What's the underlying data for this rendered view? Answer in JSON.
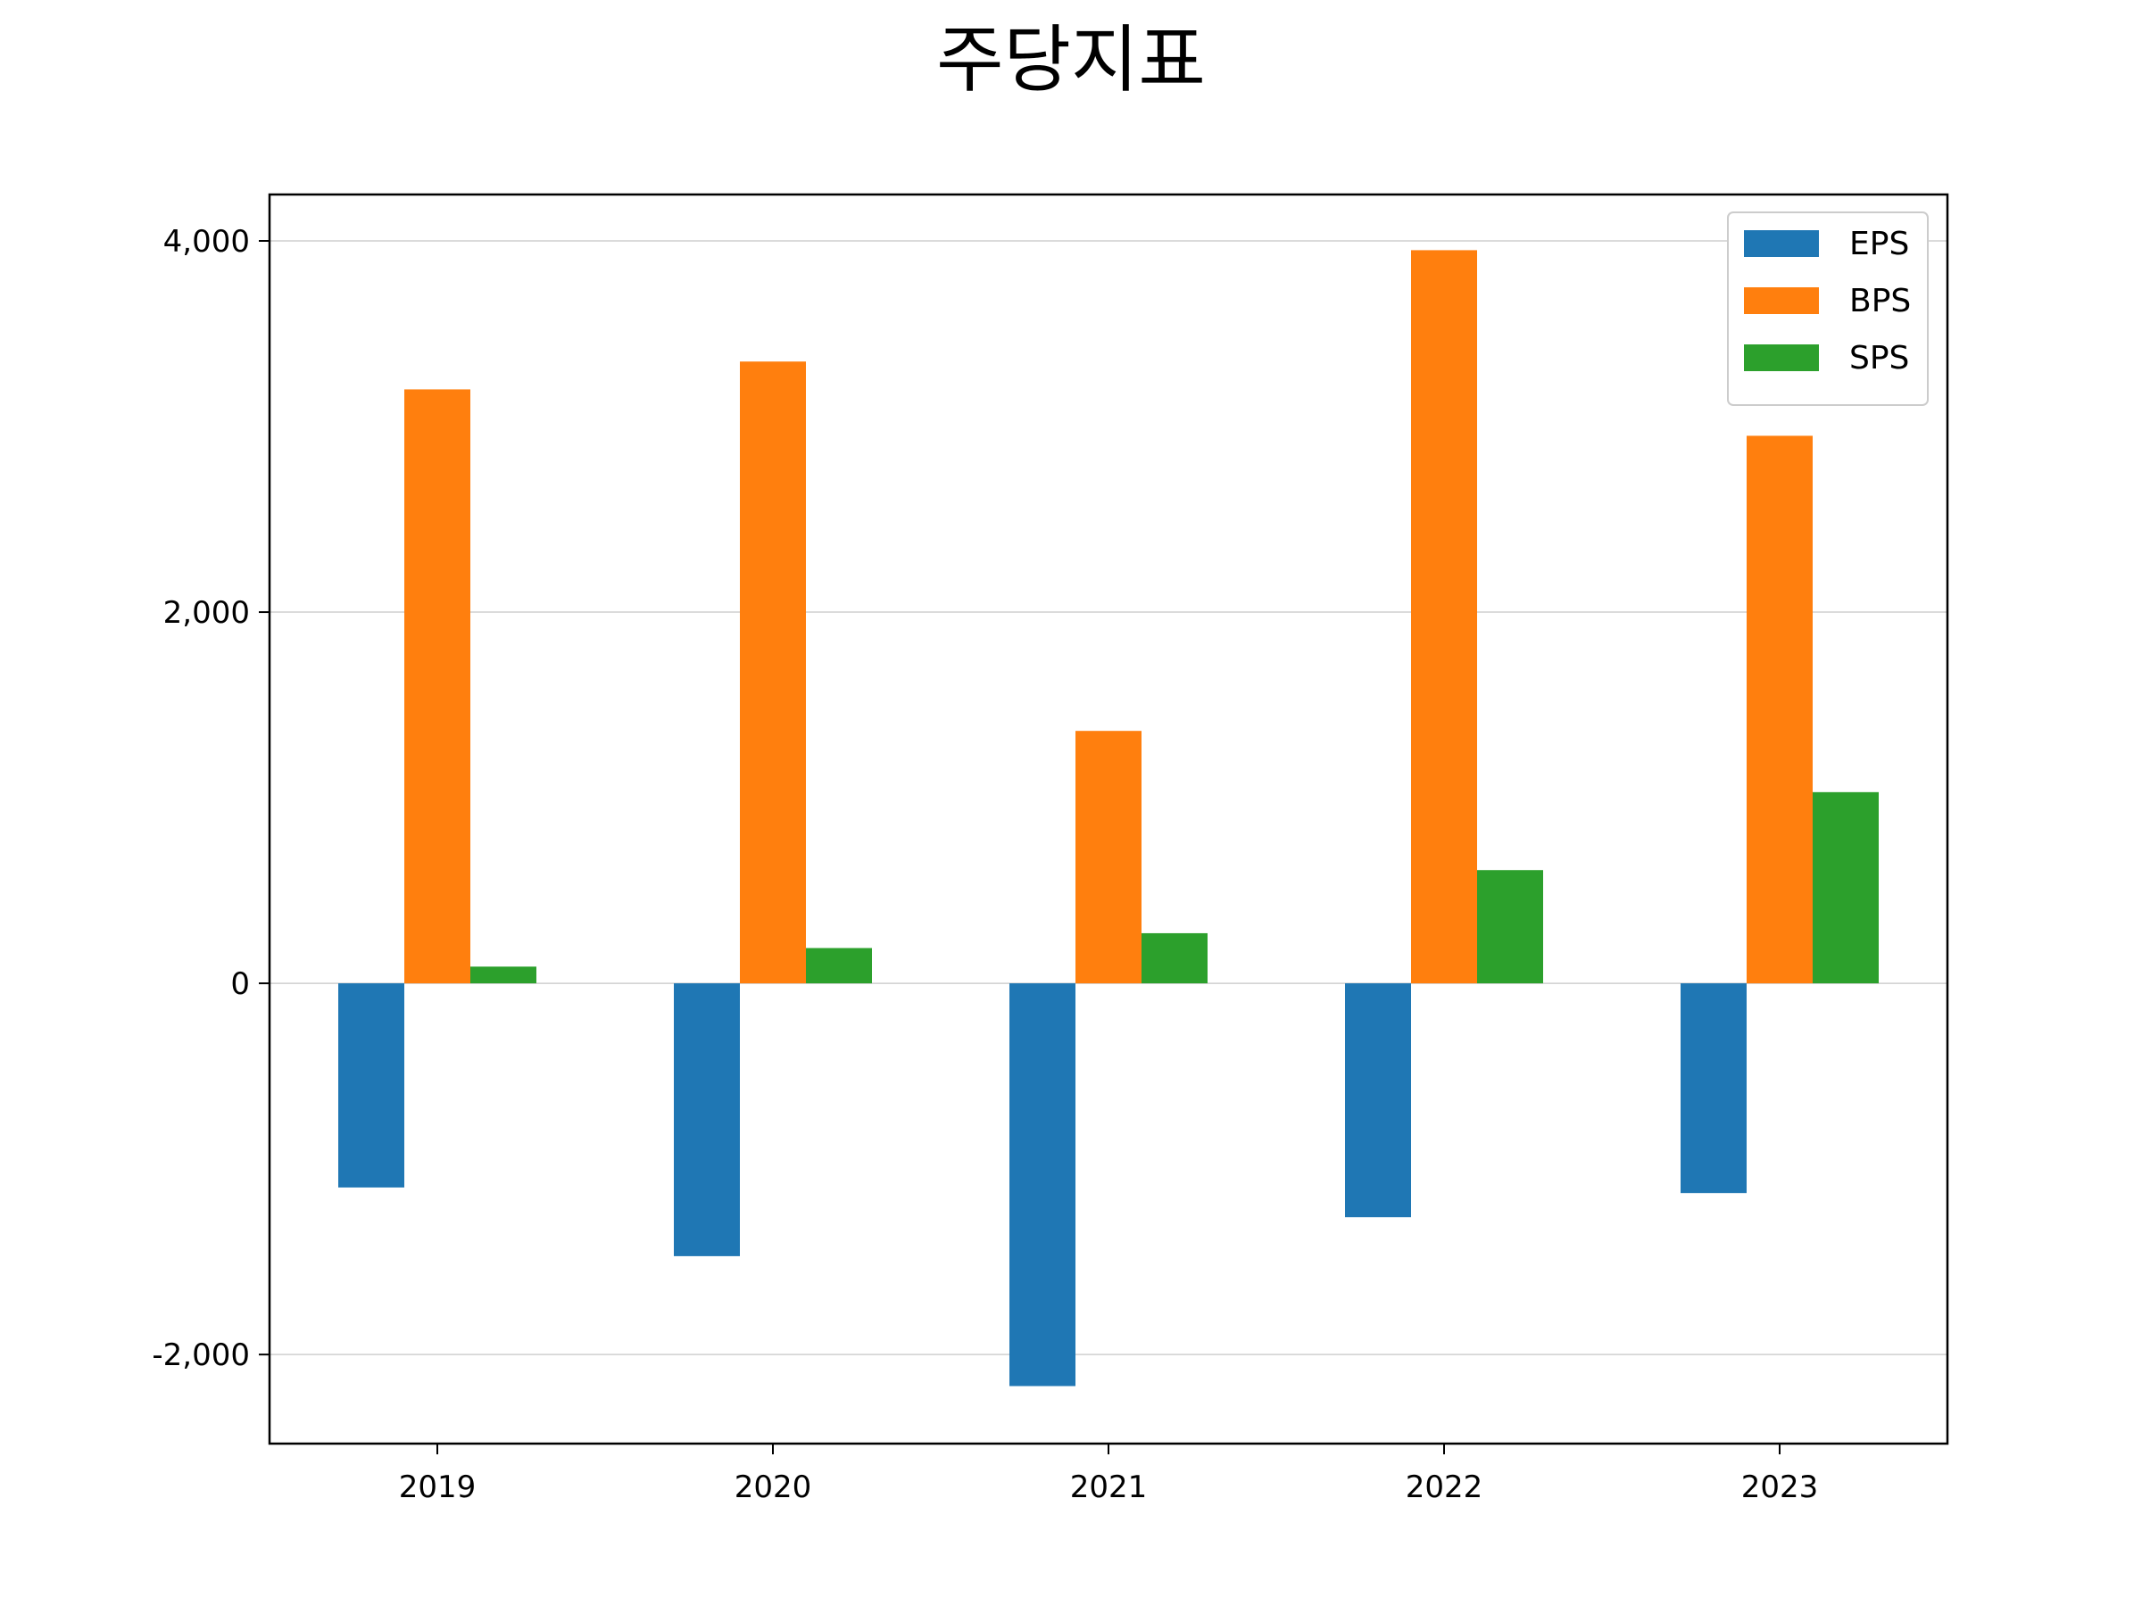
{
  "chart_data": {
    "type": "bar",
    "title": "주당지표",
    "categories": [
      "2019",
      "2020",
      "2021",
      "2022",
      "2023"
    ],
    "series": [
      {
        "name": "EPS",
        "color": "#1f77b4",
        "values": [
          -1100,
          -1470,
          -2170,
          -1260,
          -1130
        ]
      },
      {
        "name": "BPS",
        "color": "#ff7f0e",
        "values": [
          3200,
          3350,
          1360,
          3950,
          2950
        ]
      },
      {
        "name": "SPS",
        "color": "#2ca02c",
        "values": [
          90,
          190,
          270,
          610,
          1030
        ]
      }
    ],
    "ylim": [
      -2480,
      4250
    ],
    "yticks": [
      {
        "value": -2000,
        "label": "-2,000"
      },
      {
        "value": 0,
        "label": "0"
      },
      {
        "value": 2000,
        "label": "2,000"
      },
      {
        "value": 4000,
        "label": "4,000"
      }
    ],
    "grid": "horizontal",
    "legend_position": "top-right",
    "xlabel": "",
    "ylabel": ""
  }
}
